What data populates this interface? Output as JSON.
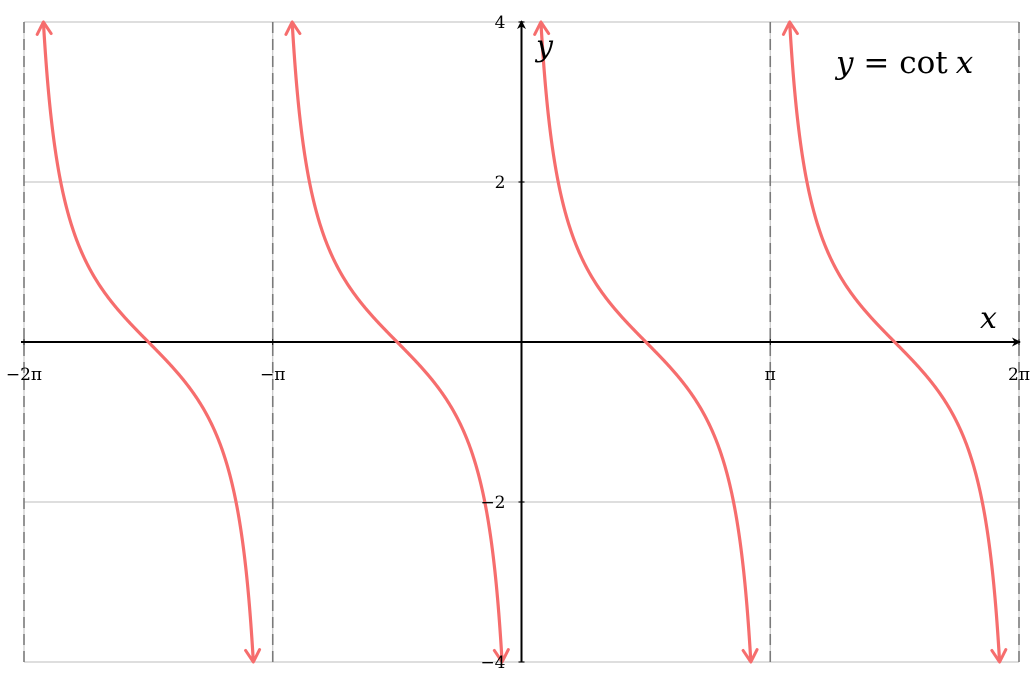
{
  "chart_data": {
    "type": "line",
    "title": "",
    "equation": {
      "lhs": "y",
      "operator": " = ",
      "func": "cot",
      "arg": "x"
    },
    "xlabel": "x",
    "ylabel": "y",
    "xlim": [
      -6.283185,
      6.283185
    ],
    "ylim": [
      -4,
      4
    ],
    "x_ticks": [
      {
        "value": -6.283185,
        "label": "−2π"
      },
      {
        "value": -3.141593,
        "label": "−π"
      },
      {
        "value": 3.141593,
        "label": "π"
      },
      {
        "value": 6.283185,
        "label": "2π"
      }
    ],
    "y_ticks": [
      {
        "value": 4,
        "label": "4"
      },
      {
        "value": 2,
        "label": "2"
      },
      {
        "value": -2,
        "label": "−2"
      },
      {
        "value": -4,
        "label": "−4"
      }
    ],
    "asymptotes": [
      -6.283185,
      -3.141593,
      0,
      3.141593,
      6.283185
    ],
    "grid": true,
    "series": [
      {
        "function": "cot(x)",
        "color": "#f66d6d"
      }
    ]
  }
}
